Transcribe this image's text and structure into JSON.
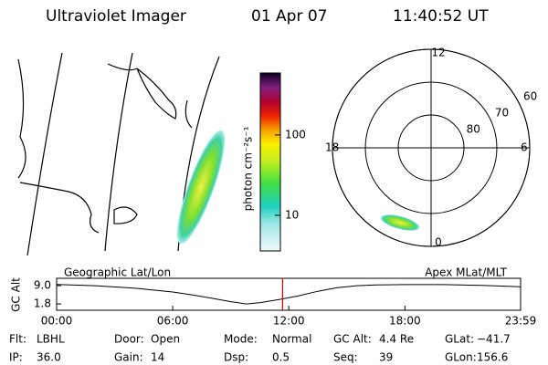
{
  "header": {
    "title": "Ultraviolet Imager",
    "date": "01 Apr 07",
    "time": "11:40:52 UT"
  },
  "colorbar": {
    "label": "photon cm⁻²s⁻¹",
    "range": [
      3.6,
      590
    ],
    "ticks": [
      10,
      100
    ],
    "log": true
  },
  "polar": {
    "lat_range": [
      90,
      60
    ],
    "lat_circles": [
      80,
      70,
      60
    ],
    "mlt_labels": [
      0,
      6,
      12,
      18
    ]
  },
  "timeline": {
    "left_label": "Geographic Lat/Lon",
    "right_label": "Apex MLat/MLT",
    "ylabel": "GC Alt",
    "xlim": [
      0,
      23.98
    ],
    "ylim": [
      -0.7,
      11.9
    ],
    "xticks": [
      {
        "value": 0,
        "label": "00:00"
      },
      {
        "value": 6,
        "label": "06:00"
      },
      {
        "value": 12,
        "label": "12:00"
      },
      {
        "value": 18,
        "label": "18:00"
      },
      {
        "value": 23.98,
        "label": "23:59"
      }
    ],
    "yticks": [
      {
        "value": 1.8,
        "label": "1.8"
      },
      {
        "value": 9,
        "label": "9.0"
      }
    ],
    "current": 11.68,
    "x": [
      0,
      2,
      4,
      6,
      7,
      8,
      9,
      9.8,
      10.5,
      11.5,
      12.5,
      13.5,
      14.5,
      15.5,
      16.5,
      18,
      20,
      22,
      23.98
    ],
    "values": [
      9.5,
      9.0,
      8.0,
      6.5,
      5.4,
      4.1,
      2.7,
      1.8,
      2.3,
      3.5,
      5.0,
      6.8,
      8.2,
      9.0,
      9.3,
      9.4,
      9.4,
      9.1,
      8.6
    ]
  },
  "status": [
    [
      {
        "label": "Flt:",
        "value": "LBHL"
      },
      {
        "label": "Door:",
        "value": "Open"
      },
      {
        "label": "Mode:",
        "value": "Normal"
      },
      {
        "label": "GC Alt:",
        "value": "4.4 Re"
      },
      {
        "label": "GLat:",
        "value": "−41.7"
      }
    ],
    [
      {
        "label": "IP:",
        "value": "36.0"
      },
      {
        "label": "Gain:",
        "value": "14"
      },
      {
        "label": "Dsp:",
        "value": "0.5"
      },
      {
        "label": "Seq:",
        "value": "39"
      },
      {
        "label": "GLon:",
        "value": "156.6"
      }
    ]
  ]
}
